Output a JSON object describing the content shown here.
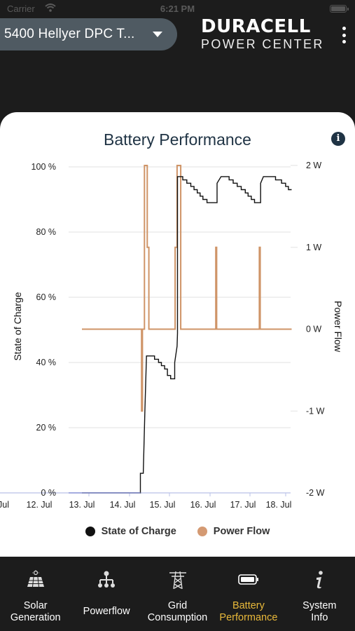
{
  "status_bar": {
    "carrier": "Carrier",
    "time": "6:21 PM"
  },
  "header": {
    "site_name": "5400 Hellyer DPC T...",
    "brand_name": "DURACELL",
    "brand_sub": "POWER CENTER"
  },
  "card": {
    "title": "Battery Performance"
  },
  "chart_data": {
    "type": "line",
    "title": "Battery Performance",
    "x_tick_labels": [
      "Jul",
      "12. Jul",
      "13. Jul",
      "14. Jul",
      "15. Jul",
      "16. Jul",
      "17. Jul",
      "18. Jul"
    ],
    "y_left": {
      "label": "State of Charge",
      "ticks": [
        "0 %",
        "20 %",
        "40 %",
        "60 %",
        "80 %",
        "100 %"
      ],
      "range": [
        0,
        100
      ]
    },
    "y_right": {
      "label": "Power Flow",
      "ticks": [
        "-2 W",
        "-1 W",
        "0 W",
        "1 W",
        "2 W"
      ],
      "range": [
        -2,
        2
      ]
    },
    "grid": true,
    "legend_position": "bottom",
    "series": [
      {
        "name": "State of Charge",
        "color": "#111111",
        "axis": "left",
        "points": [
          [
            13.0,
            0
          ],
          [
            14.45,
            0
          ],
          [
            14.45,
            6
          ],
          [
            14.52,
            6
          ],
          [
            14.56,
            25
          ],
          [
            14.6,
            42
          ],
          [
            14.8,
            42
          ],
          [
            14.8,
            41
          ],
          [
            14.9,
            41
          ],
          [
            14.9,
            40
          ],
          [
            14.97,
            40
          ],
          [
            14.97,
            39
          ],
          [
            15.05,
            39
          ],
          [
            15.05,
            38
          ],
          [
            15.12,
            38
          ],
          [
            15.12,
            36
          ],
          [
            15.2,
            36
          ],
          [
            15.2,
            35
          ],
          [
            15.3,
            35
          ],
          [
            15.3,
            40
          ],
          [
            15.36,
            45
          ],
          [
            15.37,
            49
          ],
          [
            15.37,
            97
          ],
          [
            15.5,
            97
          ],
          [
            15.5,
            96
          ],
          [
            15.6,
            96
          ],
          [
            15.6,
            95
          ],
          [
            15.7,
            95
          ],
          [
            15.7,
            94
          ],
          [
            15.78,
            94
          ],
          [
            15.78,
            93
          ],
          [
            15.86,
            93
          ],
          [
            15.86,
            92
          ],
          [
            15.93,
            92
          ],
          [
            15.93,
            91
          ],
          [
            16.0,
            91
          ],
          [
            16.0,
            90
          ],
          [
            16.1,
            90
          ],
          [
            16.1,
            89
          ],
          [
            16.35,
            89
          ],
          [
            16.35,
            95
          ],
          [
            16.45,
            97
          ],
          [
            16.65,
            97
          ],
          [
            16.65,
            96
          ],
          [
            16.75,
            96
          ],
          [
            16.75,
            95
          ],
          [
            16.85,
            95
          ],
          [
            16.85,
            94
          ],
          [
            16.95,
            94
          ],
          [
            16.95,
            93
          ],
          [
            17.05,
            93
          ],
          [
            17.05,
            92
          ],
          [
            17.12,
            92
          ],
          [
            17.12,
            91
          ],
          [
            17.2,
            91
          ],
          [
            17.2,
            90
          ],
          [
            17.28,
            90
          ],
          [
            17.28,
            89
          ],
          [
            17.43,
            89
          ],
          [
            17.43,
            95
          ],
          [
            17.5,
            97
          ],
          [
            17.8,
            97
          ],
          [
            17.8,
            96
          ],
          [
            17.95,
            96
          ],
          [
            17.95,
            95
          ],
          [
            18.05,
            95
          ],
          [
            18.05,
            94
          ],
          [
            18.12,
            94
          ],
          [
            18.12,
            93
          ],
          [
            18.2,
            93
          ]
        ]
      },
      {
        "name": "Power Flow",
        "color": "#cf9467",
        "axis": "right",
        "points": [
          [
            13.0,
            0
          ],
          [
            14.48,
            0
          ],
          [
            14.48,
            -1
          ],
          [
            14.5,
            -1
          ],
          [
            14.5,
            0
          ],
          [
            14.55,
            0
          ],
          [
            14.55,
            2.0
          ],
          [
            14.62,
            2.0
          ],
          [
            14.62,
            1.0
          ],
          [
            14.66,
            1.0
          ],
          [
            14.66,
            0
          ],
          [
            15.31,
            0
          ],
          [
            15.31,
            1.0
          ],
          [
            15.36,
            1.0
          ],
          [
            15.36,
            2.0
          ],
          [
            15.45,
            2.0
          ],
          [
            15.45,
            0
          ],
          [
            16.32,
            0
          ],
          [
            16.32,
            1.0
          ],
          [
            16.34,
            1.0
          ],
          [
            16.34,
            0
          ],
          [
            17.4,
            0
          ],
          [
            17.4,
            1.0
          ],
          [
            17.42,
            1.0
          ],
          [
            17.42,
            0
          ],
          [
            18.2,
            0
          ]
        ]
      }
    ]
  },
  "legend": [
    {
      "label": "State of Charge",
      "color": "#111111"
    },
    {
      "label": "Power Flow",
      "color": "#d49a73"
    }
  ],
  "tabs": [
    {
      "label_1": "Solar",
      "label_2": "Generation",
      "icon": "solar-panel-icon",
      "active": false
    },
    {
      "label_1": "Powerflow",
      "label_2": "",
      "icon": "powerflow-icon",
      "active": false
    },
    {
      "label_1": "Grid",
      "label_2": "Consumption",
      "icon": "power-tower-icon",
      "active": false
    },
    {
      "label_1": "Battery",
      "label_2": "Performance",
      "icon": "battery-icon",
      "active": true
    },
    {
      "label_1": "System",
      "label_2": "Info",
      "icon": "info-icon",
      "active": false
    }
  ],
  "colors": {
    "accent": "#e9b93a",
    "header_bg": "#1c1c1c",
    "selector_bg": "#4f5a62",
    "title": "#1f3344"
  }
}
